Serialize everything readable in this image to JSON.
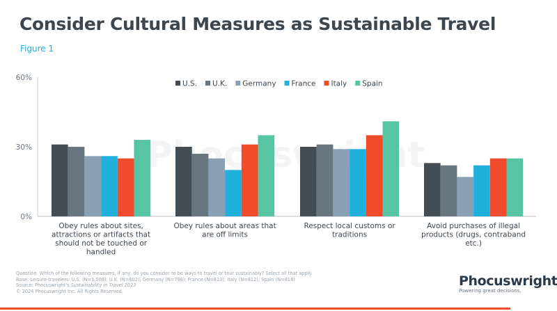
{
  "title": "Consider Cultural Measures as Sustainable Travel",
  "figure": "Figure 1",
  "chart_data": {
    "type": "bar",
    "categories": [
      [
        "Obey rules about sites,",
        "attractions or artifacts that",
        "should not be touched or",
        "handled"
      ],
      [
        "Obey rules about areas that",
        "are off limits"
      ],
      [
        "Respect local customs or",
        "traditions"
      ],
      [
        "Avoid purchases of illegal",
        "products (drugs, contraband",
        "etc.)"
      ]
    ],
    "series": [
      {
        "name": "U.S.",
        "color": "#434d56",
        "values": [
          31,
          30,
          30,
          23
        ]
      },
      {
        "name": "U.K.",
        "color": "#67767f",
        "values": [
          30,
          27,
          31,
          22
        ]
      },
      {
        "name": "Germany",
        "color": "#8aa0b4",
        "values": [
          26,
          25,
          29,
          17
        ]
      },
      {
        "name": "France",
        "color": "#1fb1dc",
        "values": [
          26,
          20,
          29,
          22
        ]
      },
      {
        "name": "Italy",
        "color": "#f04b2c",
        "values": [
          25,
          31,
          35,
          25
        ]
      },
      {
        "name": "Spain",
        "color": "#57c5a3",
        "values": [
          33,
          35,
          41,
          25
        ]
      }
    ],
    "yticks": [
      "0%",
      "30%",
      "60%"
    ],
    "ylim": [
      0,
      60
    ],
    "legend": "top-center",
    "grid": false
  },
  "footer": {
    "question": "Question: Which of the following measures, if any, do you consider to be ways to travel or tour sustainably? Select all that apply.",
    "base": "Base: Leisure travelers: U.S. (N=1,008); U.K. (N=802); Germany (N=796); France (N=810); Italy (N=812); Spain (N=818)",
    "source_prefix": "Source: Phocuswright's ",
    "source_title": "Sustainability in Travel 2023",
    "copyright": "© 2024 Phocuswright Inc. All Rights Reserved."
  },
  "logo": {
    "name": "Phocuswright",
    "tagline": "Powering great decisions."
  }
}
